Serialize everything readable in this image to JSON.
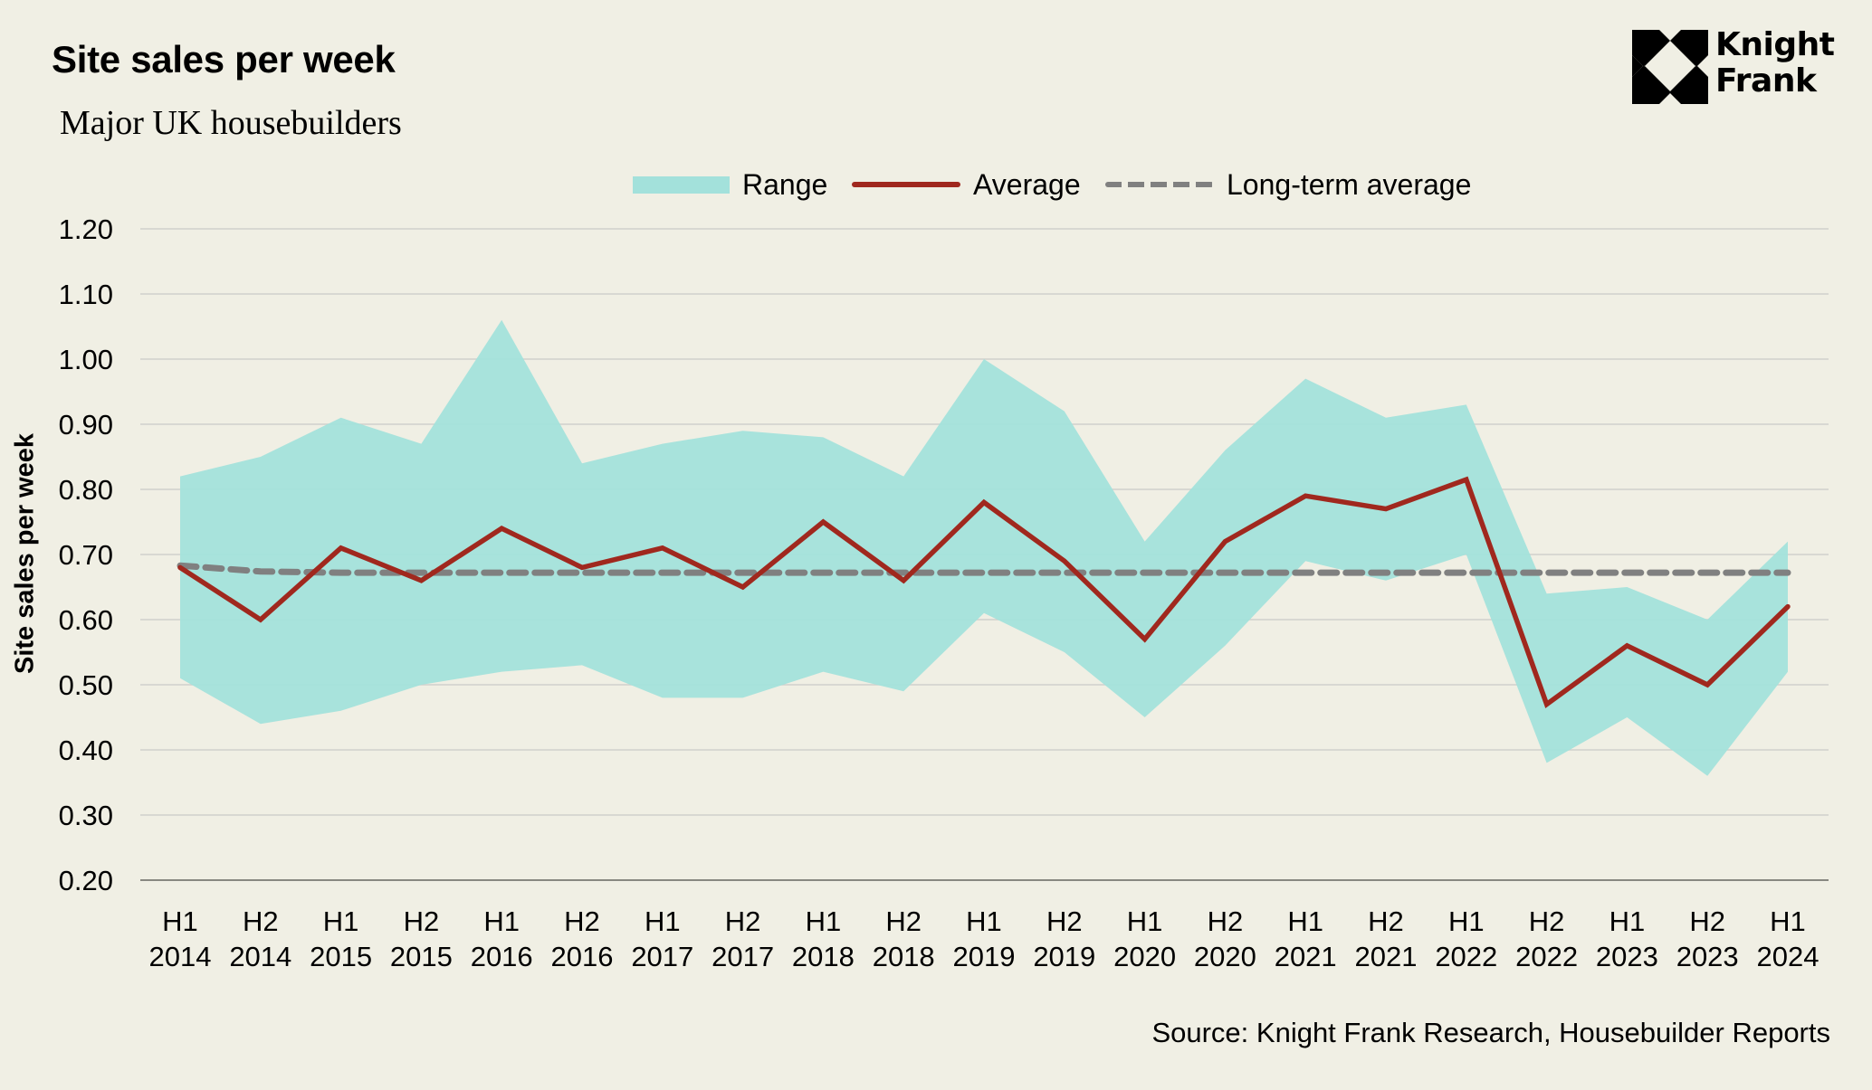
{
  "header": {
    "title": "Site sales per week",
    "subtitle": "Major UK housebuilders"
  },
  "logo": {
    "line1": "Knight",
    "line2": "Frank"
  },
  "legend": {
    "range": "Range",
    "average": "Average",
    "long_term_average": "Long-term average"
  },
  "footer": {
    "source": "Source: Knight Frank Research, Housebuilder Reports"
  },
  "colors": {
    "background": "#F0EFE4",
    "range_fill": "#A3E1DB",
    "average_line": "#A0281E",
    "long_term_average_line": "#808080",
    "gridline": "#D0D0CC"
  },
  "chart_data": {
    "type": "area",
    "title": "Site sales per week",
    "subtitle": "Major UK housebuilders",
    "xlabel": "",
    "ylabel": "Site sales per week",
    "ylim": [
      0.2,
      1.2
    ],
    "yticks": [
      "0.20",
      "0.30",
      "0.40",
      "0.50",
      "0.60",
      "0.70",
      "0.80",
      "0.90",
      "1.00",
      "1.10",
      "1.20"
    ],
    "grid": true,
    "legend_position": "top-center",
    "categories": [
      [
        "H1",
        "2014"
      ],
      [
        "H2",
        "2014"
      ],
      [
        "H1",
        "2015"
      ],
      [
        "H2",
        "2015"
      ],
      [
        "H1",
        "2016"
      ],
      [
        "H2",
        "2016"
      ],
      [
        "H1",
        "2017"
      ],
      [
        "H2",
        "2017"
      ],
      [
        "H1",
        "2018"
      ],
      [
        "H2",
        "2018"
      ],
      [
        "H1",
        "2019"
      ],
      [
        "H2",
        "2019"
      ],
      [
        "H1",
        "2020"
      ],
      [
        "H2",
        "2020"
      ],
      [
        "H1",
        "2021"
      ],
      [
        "H2",
        "2021"
      ],
      [
        "H1",
        "2022"
      ],
      [
        "H2",
        "2022"
      ],
      [
        "H1",
        "2023"
      ],
      [
        "H2",
        "2023"
      ],
      [
        "H1",
        "2024"
      ]
    ],
    "series": [
      {
        "name": "Range",
        "kind": "band",
        "upper": [
          0.82,
          0.85,
          0.91,
          0.87,
          1.06,
          0.84,
          0.87,
          0.89,
          0.88,
          0.82,
          1.0,
          0.92,
          0.72,
          0.86,
          0.97,
          0.91,
          0.93,
          0.64,
          0.65,
          0.6,
          0.72
        ],
        "lower": [
          0.51,
          0.44,
          0.46,
          0.5,
          0.52,
          0.53,
          0.48,
          0.48,
          0.52,
          0.49,
          0.61,
          0.55,
          0.45,
          0.56,
          0.69,
          0.66,
          0.7,
          0.38,
          0.45,
          0.36,
          0.52
        ]
      },
      {
        "name": "Average",
        "kind": "line",
        "values": [
          0.68,
          0.6,
          0.71,
          0.66,
          0.74,
          0.68,
          0.71,
          0.65,
          0.75,
          0.66,
          0.78,
          0.69,
          0.57,
          0.72,
          0.79,
          0.77,
          0.815,
          0.47,
          0.56,
          0.5,
          0.62
        ]
      },
      {
        "name": "Long-term average",
        "kind": "dashed-line",
        "values": [
          0.683,
          0.674,
          0.672,
          0.672,
          0.672,
          0.672,
          0.672,
          0.672,
          0.672,
          0.672,
          0.672,
          0.672,
          0.672,
          0.672,
          0.672,
          0.672,
          0.672,
          0.672,
          0.672,
          0.672,
          0.672
        ]
      }
    ],
    "source": "Source: Knight Frank Research, Housebuilder Reports"
  }
}
